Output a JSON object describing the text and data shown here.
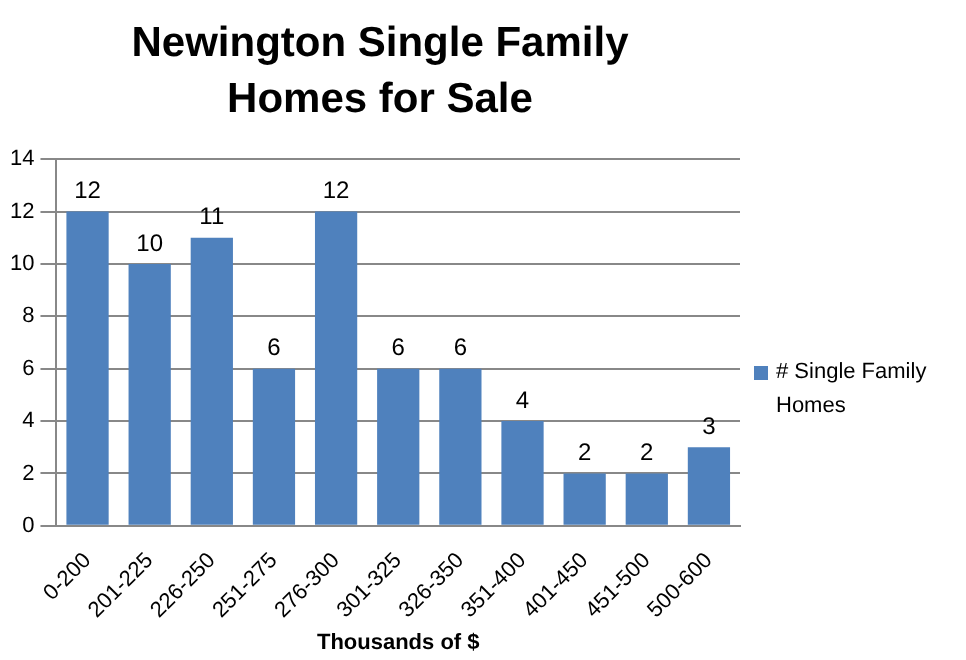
{
  "chart_data": {
    "type": "bar",
    "title": "Newington Single Family Homes for Sale",
    "xlabel": "Thousands of $",
    "categories": [
      "0-200",
      "201-225",
      "226-250",
      "251-275",
      "276-300",
      "301-325",
      "326-350",
      "351-400",
      "401-450",
      "451-500",
      "500-600"
    ],
    "series": [
      {
        "name": "# Single Family Homes",
        "color": "#4f81bd",
        "values": [
          12,
          10,
          11,
          6,
          12,
          6,
          6,
          4,
          2,
          2,
          3
        ]
      }
    ],
    "ylim": [
      0,
      14
    ],
    "yticks": [
      0,
      2,
      4,
      6,
      8,
      10,
      12,
      14
    ],
    "grid": "y",
    "legend": "right",
    "data_labels": true
  }
}
